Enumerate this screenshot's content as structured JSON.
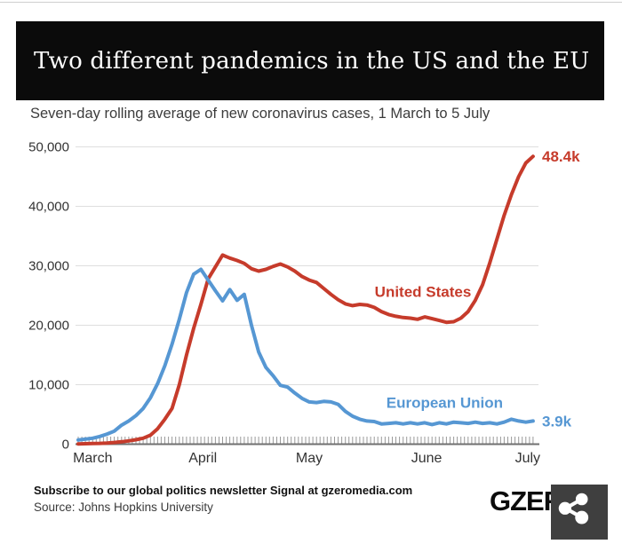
{
  "page": {
    "title": "Two different pandemics in the US and the EU",
    "subtitle": "Seven-day rolling average of new coronavirus cases, 1 March to 5 July"
  },
  "chart_data": {
    "type": "line",
    "title": "Two different pandemics in the US and the EU",
    "subtitle": "Seven-day rolling average of new coronavirus cases, 1 March to 5 July",
    "date_range": "1 March to 5 July",
    "x_unit": "days since 1 March",
    "ylim": [
      0,
      50000
    ],
    "grid": "horizontal",
    "colors": {
      "grid": "#dedede",
      "axis": "#707070",
      "tick": "#9a9a9a",
      "text": "#333333"
    },
    "y_ticks": [
      {
        "value": 0,
        "label": "0"
      },
      {
        "value": 10000,
        "label": "10,000"
      },
      {
        "value": 20000,
        "label": "20,000"
      },
      {
        "value": 30000,
        "label": "30,000"
      },
      {
        "value": 40000,
        "label": "40,000"
      },
      {
        "value": 50000,
        "label": "50,000"
      }
    ],
    "x_ticks": [
      {
        "label": "March",
        "day": 4
      },
      {
        "label": "April",
        "day": 34.5
      },
      {
        "label": "May",
        "day": 64
      },
      {
        "label": "June",
        "day": 96.5
      },
      {
        "label": "July",
        "day": 124.5
      }
    ],
    "series": [
      {
        "id": "united-states",
        "name": "United States",
        "color": "#c63b2b",
        "inline_label": "United States",
        "end_label": "48.4k",
        "label_day": 95.5,
        "label_value": 25700,
        "start_day": 0,
        "step_days": 2,
        "values": [
          50,
          70,
          100,
          140,
          200,
          280,
          400,
          550,
          750,
          1000,
          1500,
          2600,
          4200,
          6000,
          10000,
          15000,
          19500,
          23500,
          27800,
          29800,
          31800,
          31300,
          30900,
          30400,
          29500,
          29100,
          29400,
          29900,
          30300,
          29800,
          29100,
          28200,
          27600,
          27200,
          26200,
          25200,
          24300,
          23600,
          23300,
          23500,
          23400,
          23000,
          22300,
          21800,
          21500,
          21300,
          21200,
          21000,
          21400,
          21100,
          20800,
          20500,
          20600,
          21200,
          22300,
          24200,
          26800,
          30500,
          34500,
          38500,
          42000,
          45000,
          47300,
          48400
        ]
      },
      {
        "id": "european-union",
        "name": "European Union",
        "color": "#5697d3",
        "inline_label": "European Union",
        "end_label": "3.9k",
        "label_day": 101.5,
        "label_value": 7000,
        "start_day": 0,
        "step_days": 2,
        "values": [
          700,
          850,
          1000,
          1300,
          1700,
          2200,
          3200,
          3900,
          4800,
          6000,
          7800,
          10200,
          13200,
          16800,
          21000,
          25500,
          28600,
          29400,
          27600,
          25800,
          24100,
          26000,
          24200,
          25200,
          20000,
          15500,
          12900,
          11500,
          9900,
          9600,
          8600,
          7700,
          7100,
          7000,
          7200,
          7100,
          6700,
          5500,
          4700,
          4200,
          3900,
          3800,
          3400,
          3500,
          3600,
          3400,
          3600,
          3400,
          3600,
          3300,
          3600,
          3400,
          3700,
          3600,
          3500,
          3700,
          3500,
          3600,
          3400,
          3700,
          4200,
          3900,
          3700,
          3900
        ]
      }
    ]
  },
  "footer": {
    "subscribe": "Subscribe to our global politics newsletter Signal at gzeromedia.com",
    "source": "Source: Johns Hopkins University",
    "logo_text": "GZERO",
    "logo_icon": "share-icon"
  }
}
